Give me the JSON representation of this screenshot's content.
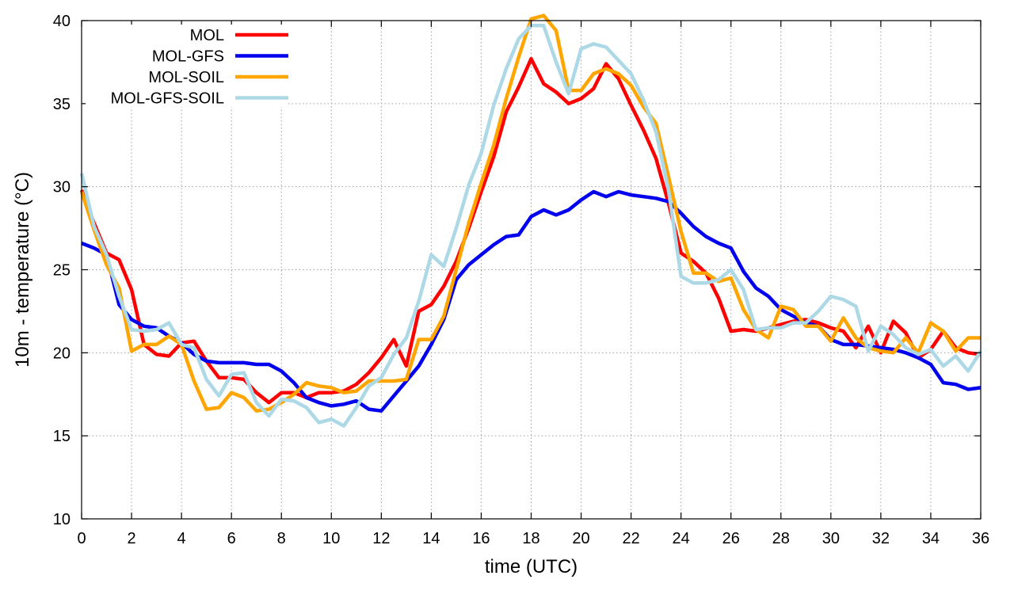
{
  "chart_data": {
    "type": "line",
    "title": "",
    "xlabel": "time (UTC)",
    "ylabel": "10m - temperature (°C)",
    "xlim": [
      0,
      36
    ],
    "ylim": [
      10,
      40
    ],
    "xticks": [
      0,
      2,
      4,
      6,
      8,
      10,
      12,
      14,
      16,
      18,
      20,
      22,
      24,
      26,
      28,
      30,
      32,
      34,
      36
    ],
    "yticks": [
      10,
      15,
      20,
      25,
      30,
      35,
      40
    ],
    "grid": true,
    "legend_position": "top-left",
    "series": [
      {
        "name": "MOL",
        "color": "#ff0000",
        "x": [
          0,
          0.5,
          1,
          1.5,
          2,
          2.5,
          3,
          3.5,
          4,
          4.5,
          5,
          5.5,
          6,
          6.5,
          7,
          7.5,
          8,
          8.5,
          9,
          9.5,
          10,
          10.5,
          11,
          11.5,
          12,
          12.5,
          13,
          13.5,
          14,
          14.5,
          15,
          15.5,
          16,
          16.5,
          17,
          17.5,
          18,
          18.5,
          19,
          19.5,
          20,
          20.5,
          21,
          21.5,
          22,
          22.5,
          23,
          23.5,
          24,
          24.5,
          25,
          25.5,
          26,
          26.5,
          27,
          27.5,
          28,
          28.5,
          29,
          29.5,
          30,
          30.5,
          31,
          31.5,
          32,
          32.5,
          33,
          33.5,
          34,
          34.5,
          35,
          35.5,
          36
        ],
        "values": [
          29.8,
          27.8,
          26,
          25.6,
          23.8,
          20.5,
          19.9,
          19.8,
          20.6,
          20.7,
          19.5,
          18.5,
          18.5,
          18.4,
          17.6,
          17,
          17.6,
          17.6,
          17.3,
          17.6,
          17.6,
          17.7,
          18.1,
          18.8,
          19.7,
          20.8,
          19.2,
          22.5,
          22.9,
          24,
          25.5,
          27.5,
          29.7,
          31.8,
          34.5,
          36,
          37.7,
          36.2,
          35.7,
          35,
          35.3,
          35.9,
          37.4,
          36.5,
          34.9,
          33.4,
          31.7,
          29,
          26,
          25.5,
          24.8,
          23.3,
          21.3,
          21.4,
          21.3,
          21.5,
          21.7,
          21.9,
          22,
          21.8,
          21.5,
          21.3,
          20.3,
          21.6,
          20,
          21.9,
          21.2,
          19.7,
          20.2,
          21.3,
          20.3,
          20,
          19.9
        ]
      },
      {
        "name": "MOL-GFS",
        "color": "#0000ee",
        "x": [
          0,
          0.5,
          1,
          1.5,
          2,
          2.5,
          3,
          3.5,
          4,
          4.5,
          5,
          5.5,
          6,
          6.5,
          7,
          7.5,
          8,
          8.5,
          9,
          9.5,
          10,
          10.5,
          11,
          11.5,
          12,
          12.5,
          13,
          13.5,
          14,
          14.5,
          15,
          15.5,
          16,
          16.5,
          17,
          17.5,
          18,
          18.5,
          19,
          19.5,
          20,
          20.5,
          21,
          21.5,
          22,
          22.5,
          23,
          23.5,
          24,
          24.5,
          25,
          25.5,
          26,
          26.5,
          27,
          27.5,
          28,
          28.5,
          29,
          29.5,
          30,
          30.5,
          31,
          31.5,
          32,
          32.5,
          33,
          33.5,
          34,
          34.5,
          35,
          35.5,
          36
        ],
        "values": [
          26.6,
          26.3,
          25.9,
          22.9,
          22,
          21.6,
          21.5,
          21,
          20.6,
          19.9,
          19.5,
          19.4,
          19.4,
          19.4,
          19.3,
          19.3,
          18.9,
          18.2,
          17.3,
          17,
          16.8,
          16.9,
          17.1,
          16.6,
          16.5,
          17.4,
          18.3,
          19.2,
          20.5,
          22,
          24.4,
          25.3,
          25.9,
          26.5,
          27,
          27.1,
          28.2,
          28.6,
          28.3,
          28.6,
          29.2,
          29.7,
          29.4,
          29.7,
          29.5,
          29.4,
          29.3,
          29.1,
          28.4,
          27.6,
          27,
          26.6,
          26.3,
          24.9,
          23.9,
          23.4,
          22.6,
          22.2,
          21.8,
          21.6,
          20.8,
          20.5,
          20.5,
          20.4,
          20.3,
          20.2,
          20,
          19.7,
          19.3,
          18.2,
          18.1,
          17.8,
          17.9
        ]
      },
      {
        "name": "MOL-SOIL",
        "color": "#ffa500",
        "x": [
          0,
          0.5,
          1,
          1.5,
          2,
          2.5,
          3,
          3.5,
          4,
          4.5,
          5,
          5.5,
          6,
          6.5,
          7,
          7.5,
          8,
          8.5,
          9,
          9.5,
          10,
          10.5,
          11,
          11.5,
          12,
          12.5,
          13,
          13.5,
          14,
          14.5,
          15,
          15.5,
          16,
          16.5,
          17,
          17.5,
          18,
          18.5,
          19,
          19.5,
          20,
          20.5,
          21,
          21.5,
          22,
          22.5,
          23,
          23.5,
          24,
          24.5,
          25,
          25.5,
          26,
          26.5,
          27,
          27.5,
          28,
          28.5,
          29,
          29.5,
          30,
          30.5,
          31,
          31.5,
          32,
          32.5,
          33,
          33.5,
          34,
          34.5,
          35,
          35.5,
          36
        ],
        "values": [
          29.7,
          27.4,
          25.3,
          23.9,
          20.1,
          20.5,
          20.5,
          21,
          20.5,
          18.3,
          16.6,
          16.7,
          17.6,
          17.3,
          16.5,
          16.6,
          17,
          17.5,
          18.2,
          18,
          17.9,
          17.6,
          17.7,
          18.3,
          18.3,
          18.3,
          18.4,
          20.8,
          20.8,
          22.2,
          25,
          27.8,
          30.2,
          32.5,
          35.3,
          37.8,
          40.1,
          40.3,
          39.4,
          35.8,
          35.8,
          36.8,
          37.1,
          36.8,
          36.1,
          34.8,
          33.8,
          30.6,
          27.3,
          24.8,
          24.8,
          24.3,
          24.5,
          22.6,
          21.4,
          20.9,
          22.8,
          22.6,
          21.6,
          21.6,
          20.7,
          22.1,
          20.9,
          20.3,
          20.1,
          20,
          20.9,
          20,
          21.8,
          21.3,
          20.1,
          20.9,
          20.9
        ]
      },
      {
        "name": "MOL-GFS-SOIL",
        "color": "#add8e6",
        "x": [
          0,
          0.5,
          1,
          1.5,
          2,
          2.5,
          3,
          3.5,
          4,
          4.5,
          5,
          5.5,
          6,
          6.5,
          7,
          7.5,
          8,
          8.5,
          9,
          9.5,
          10,
          10.5,
          11,
          11.5,
          12,
          12.5,
          13,
          13.5,
          14,
          14.5,
          15,
          15.5,
          16,
          16.5,
          17,
          17.5,
          18,
          18.5,
          19,
          19.5,
          20,
          20.5,
          21,
          21.5,
          22,
          22.5,
          23,
          23.5,
          24,
          24.5,
          25,
          25.5,
          26,
          26.5,
          27,
          27.5,
          28,
          28.5,
          29,
          29.5,
          30,
          30.5,
          31,
          31.5,
          32,
          32.5,
          33,
          33.5,
          34,
          34.5,
          35,
          35.5,
          36
        ],
        "values": [
          30.8,
          27.6,
          25.9,
          23.4,
          21.4,
          21.3,
          21.4,
          21.8,
          20.5,
          20.3,
          18.4,
          17.4,
          18.7,
          18.8,
          17,
          16.2,
          17.2,
          17.1,
          16.7,
          15.8,
          16,
          15.6,
          16.7,
          18,
          18.5,
          19.9,
          20.9,
          23.1,
          25.9,
          25.2,
          27.5,
          30.1,
          32,
          34.9,
          37.1,
          38.9,
          39.7,
          39.7,
          37.5,
          35.6,
          38.3,
          38.6,
          38.4,
          37.6,
          36.8,
          35.2,
          33.3,
          29.8,
          24.6,
          24.2,
          24.2,
          24.4,
          25,
          23.8,
          21.4,
          21.5,
          21.5,
          21.8,
          21.8,
          22.5,
          23.4,
          23.2,
          22.8,
          20.1,
          21.6,
          21.1,
          20.3,
          19.9,
          20.2,
          19.2,
          19.8,
          18.9,
          20.1
        ]
      }
    ]
  }
}
